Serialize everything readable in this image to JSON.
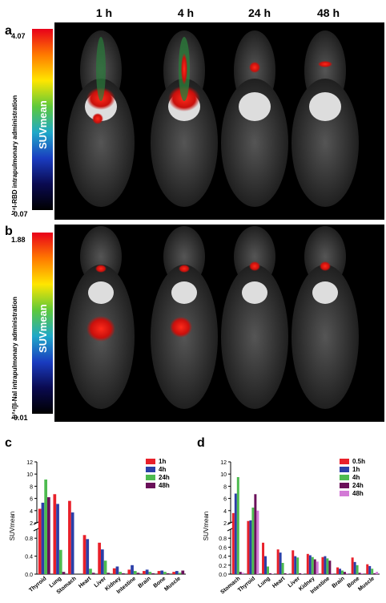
{
  "timepoints": [
    "1 h",
    "4 h",
    "24 h",
    "48 h"
  ],
  "panel_a": {
    "letter": "a",
    "scale_max": "4.07",
    "scale_min": "-0.07",
    "scale_label": "SUVmean",
    "side_label": "¹²⁴I-RBD intrapulmonary administration"
  },
  "panel_b": {
    "letter": "b",
    "scale_max": "1.88",
    "scale_min": "-0.01",
    "scale_label": "SUVmean",
    "side_label": "[¹²⁴I]I-NaI intrapulmonary administration"
  },
  "colors": {
    "1h": "#e8202a",
    "4h": "#2b3fa8",
    "24h": "#4dbb4f",
    "48h": "#6a1059",
    "0.5h": "#e8202a",
    "d_48h": "#d37ad6"
  },
  "chart_data": [
    {
      "panel": "c",
      "type": "bar",
      "ylabel": "SUVmean",
      "categories": [
        "Thyroid",
        "Lung",
        "Stomach",
        "Heart",
        "Liver",
        "Kidney",
        "Intestine",
        "Brain",
        "Bone",
        "Muscle"
      ],
      "y_axis_break": [
        1.0,
        2.0
      ],
      "yticks_lower": [
        "0.0",
        "0.4",
        "0.8"
      ],
      "yticks_upper": [
        "2",
        "4",
        "6",
        "8",
        "10",
        "12"
      ],
      "series": [
        {
          "name": "1h",
          "values": [
            4.3,
            6.7,
            5.6,
            0.87,
            0.7,
            0.13,
            0.1,
            0.07,
            0.07,
            0.05
          ]
        },
        {
          "name": "4h",
          "values": [
            5.3,
            5.1,
            3.7,
            0.78,
            0.55,
            0.17,
            0.2,
            0.1,
            0.08,
            0.07
          ]
        },
        {
          "name": "24h",
          "values": [
            9.1,
            0.54,
            0,
            0.12,
            0.3,
            0.05,
            0.07,
            0.05,
            0.05,
            0.03
          ]
        },
        {
          "name": "48h",
          "values": [
            6.2,
            0.05,
            0,
            0.03,
            0.03,
            0.02,
            0.03,
            0.02,
            0.02,
            0.08
          ]
        }
      ]
    },
    {
      "panel": "d",
      "type": "bar",
      "ylabel": "SUVmean",
      "categories": [
        "Stomach",
        "Thyroid",
        "Lung",
        "Heart",
        "Liver",
        "Kidney",
        "Intestine",
        "Brain",
        "Bone",
        "Muscle"
      ],
      "y_axis_break": [
        1.0,
        2.0
      ],
      "yticks_lower": [
        "0.0",
        "0.2",
        "0.4",
        "0.6",
        "0.8"
      ],
      "yticks_upper": [
        "2",
        "4",
        "6",
        "8",
        "10",
        "12"
      ],
      "series": [
        {
          "name": "0.5h",
          "values": [
            3.6,
            2.3,
            0.7,
            0.55,
            0.53,
            0.45,
            0.38,
            0.15,
            0.37,
            0.22
          ]
        },
        {
          "name": "1h",
          "values": [
            6.8,
            2.4,
            0.4,
            0.48,
            0.4,
            0.42,
            0.4,
            0.12,
            0.27,
            0.18
          ]
        },
        {
          "name": "4h",
          "values": [
            9.5,
            4.5,
            0.17,
            0.25,
            0.37,
            0.38,
            0.35,
            0.08,
            0.2,
            0.12
          ]
        },
        {
          "name": "24h",
          "values": [
            0.05,
            6.7,
            0.02,
            0.02,
            0.02,
            0.33,
            0.3,
            0.05,
            0.03,
            0.02
          ]
        },
        {
          "name": "48h",
          "values": [
            0.03,
            4.0,
            0.01,
            0.01,
            0.01,
            0.28,
            0.02,
            0.02,
            0.02,
            0.05
          ]
        }
      ]
    }
  ]
}
